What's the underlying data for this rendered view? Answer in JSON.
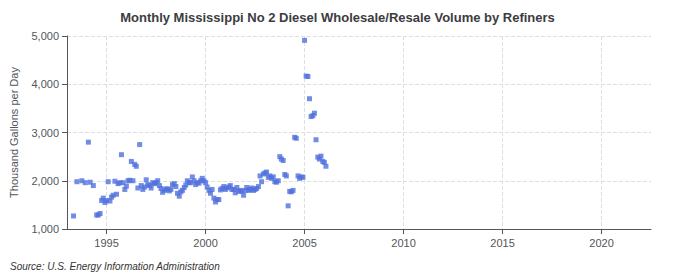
{
  "chart_data": {
    "type": "scatter",
    "title": "Monthly Mississippi No 2 Diesel Wholesale/Resale Volume by Refiners",
    "ylabel": "Thousand Gallons per Day",
    "annotations": [
      "Source: U.S. Energy Information Administration"
    ],
    "marker": "square",
    "grid": true,
    "xlim": [
      1993.0,
      2022.5
    ],
    "xticks": [
      1995,
      2000,
      2005,
      2010,
      2015,
      2020
    ],
    "ylim": [
      1000,
      5000
    ],
    "yticks": [
      {
        "value": 1000,
        "label": "1,000"
      },
      {
        "value": 2000,
        "label": "2,000"
      },
      {
        "value": 3000,
        "label": "3,000"
      },
      {
        "value": 4000,
        "label": "4,000"
      },
      {
        "value": 5000,
        "label": "5,000"
      }
    ],
    "x": [
      1993.33,
      1993.5,
      1993.75,
      1993.92,
      1994.08,
      1994.17,
      1994.33,
      1994.5,
      1994.58,
      1994.67,
      1994.75,
      1994.83,
      1994.92,
      1995.0,
      1995.08,
      1995.17,
      1995.25,
      1995.33,
      1995.42,
      1995.5,
      1995.58,
      1995.67,
      1995.75,
      1995.83,
      1995.92,
      1996.0,
      1996.08,
      1996.17,
      1996.25,
      1996.33,
      1996.42,
      1996.5,
      1996.58,
      1996.67,
      1996.75,
      1996.83,
      1996.92,
      1997.0,
      1997.08,
      1997.17,
      1997.25,
      1997.33,
      1997.42,
      1997.5,
      1997.58,
      1997.67,
      1997.75,
      1997.83,
      1997.92,
      1998.0,
      1998.08,
      1998.17,
      1998.25,
      1998.33,
      1998.42,
      1998.5,
      1998.58,
      1998.67,
      1998.75,
      1998.83,
      1998.92,
      1999.0,
      1999.08,
      1999.17,
      1999.25,
      1999.33,
      1999.42,
      1999.5,
      1999.58,
      1999.67,
      1999.75,
      1999.83,
      1999.92,
      2000.0,
      2000.08,
      2000.17,
      2000.25,
      2000.33,
      2000.42,
      2000.5,
      2000.58,
      2000.67,
      2000.75,
      2000.83,
      2000.92,
      2001.0,
      2001.08,
      2001.17,
      2001.25,
      2001.33,
      2001.42,
      2001.5,
      2001.58,
      2001.67,
      2001.75,
      2001.83,
      2001.92,
      2002.0,
      2002.08,
      2002.17,
      2002.25,
      2002.33,
      2002.42,
      2002.5,
      2002.58,
      2002.67,
      2002.75,
      2002.83,
      2002.92,
      2003.0,
      2003.08,
      2003.17,
      2003.25,
      2003.33,
      2003.42,
      2003.5,
      2003.58,
      2003.67,
      2003.75,
      2003.83,
      2003.92,
      2004.0,
      2004.08,
      2004.17,
      2004.25,
      2004.33,
      2004.42,
      2004.5,
      2004.58,
      2004.67,
      2004.75,
      2004.83,
      2004.92,
      2005.0,
      2005.08,
      2005.17,
      2005.25,
      2005.33,
      2005.42,
      2005.5,
      2005.58,
      2005.67,
      2005.75,
      2005.83,
      2005.92,
      2006.0,
      2006.08
    ],
    "values": [
      1270,
      1980,
      2000,
      1960,
      2800,
      1970,
      1900,
      1290,
      1290,
      1320,
      1590,
      1640,
      1550,
      1590,
      1980,
      1580,
      1660,
      1700,
      1990,
      1720,
      1940,
      1960,
      2540,
      1960,
      1820,
      1890,
      2000,
      2010,
      2400,
      2000,
      2340,
      2300,
      1850,
      2750,
      1900,
      1820,
      1870,
      2020,
      1920,
      1900,
      1850,
      1960,
      1940,
      1960,
      2000,
      1900,
      1840,
      1760,
      1800,
      1830,
      1830,
      1790,
      1820,
      1920,
      1940,
      1880,
      1740,
      1680,
      1770,
      1800,
      1860,
      1910,
      2000,
      1960,
      1960,
      2080,
      2000,
      1920,
      1960,
      1950,
      2000,
      2050,
      2000,
      1960,
      1870,
      1800,
      1740,
      1820,
      1640,
      1560,
      1610,
      1610,
      1810,
      1840,
      1880,
      1820,
      1850,
      1870,
      1900,
      1820,
      1820,
      1750,
      1860,
      1780,
      1800,
      1780,
      1700,
      1800,
      1860,
      1800,
      1820,
      1850,
      1800,
      1820,
      1840,
      1880,
      2100,
      1980,
      2140,
      2160,
      2180,
      2070,
      2100,
      2050,
      2080,
      1980,
      1970,
      2000,
      2500,
      2450,
      2420,
      2130,
      2100,
      1480,
      1780,
      1770,
      1800,
      2900,
      2880,
      2100,
      2050,
      2080,
      2070,
      4910,
      4170,
      4160,
      3700,
      3330,
      3350,
      3400,
      2850,
      2490,
      2450,
      2510,
      2400,
      2380,
      2300
    ]
  }
}
